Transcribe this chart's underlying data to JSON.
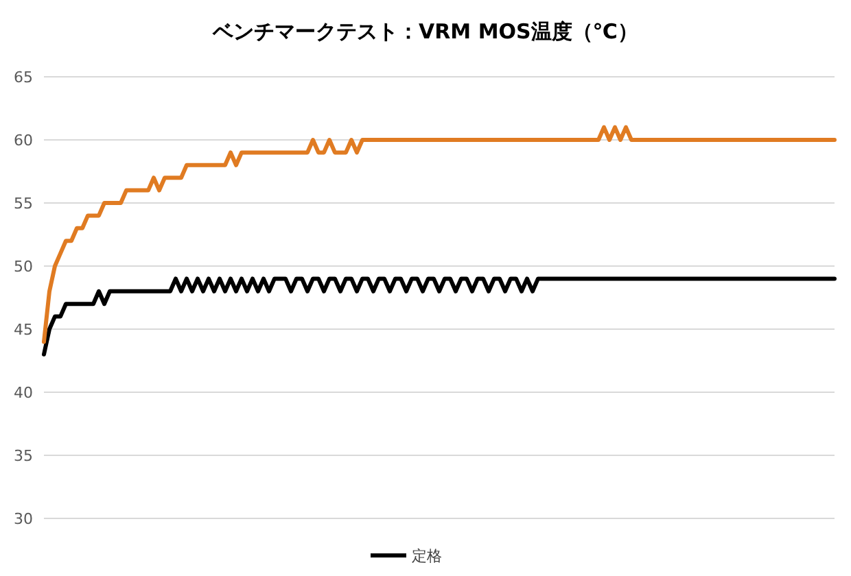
{
  "chart_data": {
    "type": "line",
    "title": "ベンチマークテスト：VRM MOS温度（℃）",
    "categories": [
      null,
      null,
      null,
      null,
      null,
      null,
      null,
      null,
      null,
      null,
      null,
      null,
      null,
      null,
      null,
      null,
      null,
      null,
      null,
      null,
      null,
      null,
      null,
      null,
      null,
      null,
      null,
      null,
      null,
      null,
      null,
      null,
      null,
      null,
      null,
      null,
      null,
      null,
      null,
      null,
      null,
      null,
      null,
      null,
      null,
      null,
      null,
      null,
      null,
      null,
      null,
      null,
      null,
      null,
      null,
      null,
      null,
      null,
      null,
      null,
      null,
      null,
      null,
      null,
      null,
      null,
      null,
      null,
      null,
      null,
      null,
      null,
      null,
      null,
      null,
      null,
      null,
      null,
      null,
      null,
      null,
      null,
      null,
      null,
      null,
      null,
      null,
      null,
      null,
      null,
      null,
      null,
      null,
      null,
      null,
      null,
      null,
      null,
      null,
      null,
      null,
      null,
      null,
      null,
      null,
      null,
      null,
      null,
      null,
      null,
      null,
      null,
      null,
      null,
      null,
      null,
      null,
      null,
      null,
      null,
      null,
      null,
      null,
      null,
      null,
      null,
      null,
      null,
      null,
      null,
      null,
      null,
      null,
      null,
      null,
      null,
      null,
      null,
      null,
      null,
      null,
      null,
      null,
      null,
      null
    ],
    "series": [
      {
        "name": "定格",
        "color": "#000000",
        "values": [
          43,
          45,
          46,
          46,
          47,
          47,
          47,
          47,
          47,
          47,
          48,
          47,
          48,
          48,
          48,
          48,
          48,
          48,
          48,
          48,
          48,
          48,
          48,
          48,
          49,
          48,
          49,
          48,
          49,
          48,
          49,
          48,
          49,
          48,
          49,
          48,
          49,
          48,
          49,
          48,
          49,
          48,
          49,
          49,
          49,
          48,
          49,
          49,
          48,
          49,
          49,
          48,
          49,
          49,
          48,
          49,
          49,
          48,
          49,
          49,
          48,
          49,
          49,
          48,
          49,
          49,
          48,
          49,
          49,
          48,
          49,
          49,
          48,
          49,
          49,
          48,
          49,
          49,
          48,
          49,
          49,
          48,
          49,
          49,
          48,
          49,
          49,
          48,
          49,
          48,
          49,
          49,
          49,
          49,
          49,
          49,
          49,
          49,
          49,
          49,
          49,
          49,
          49,
          49,
          49,
          49,
          49,
          49,
          49,
          49,
          49,
          49,
          49,
          49,
          49,
          49,
          49,
          49,
          49,
          49,
          49,
          49,
          49,
          49,
          49,
          49,
          49,
          49,
          49,
          49,
          49,
          49,
          49,
          49,
          49,
          49,
          49,
          49,
          49,
          49,
          49,
          49,
          49,
          49,
          49
        ]
      },
      {
        "color": "#e07b22",
        "values": [
          44,
          48,
          50,
          51,
          52,
          52,
          53,
          53,
          54,
          54,
          54,
          55,
          55,
          55,
          55,
          56,
          56,
          56,
          56,
          56,
          57,
          56,
          57,
          57,
          57,
          57,
          58,
          58,
          58,
          58,
          58,
          58,
          58,
          58,
          59,
          58,
          59,
          59,
          59,
          59,
          59,
          59,
          59,
          59,
          59,
          59,
          59,
          59,
          59,
          60,
          59,
          59,
          60,
          59,
          59,
          59,
          60,
          59,
          60,
          60,
          60,
          60,
          60,
          60,
          60,
          60,
          60,
          60,
          60,
          60,
          60,
          60,
          60,
          60,
          60,
          60,
          60,
          60,
          60,
          60,
          60,
          60,
          60,
          60,
          60,
          60,
          60,
          60,
          60,
          60,
          60,
          60,
          60,
          60,
          60,
          60,
          60,
          60,
          60,
          60,
          60,
          60,
          61,
          60,
          61,
          60,
          61,
          60,
          60,
          60,
          60,
          60,
          60,
          60,
          60,
          60,
          60,
          60,
          60,
          60,
          60,
          60,
          60,
          60,
          60,
          60,
          60,
          60,
          60,
          60,
          60,
          60,
          60,
          60,
          60,
          60,
          60,
          60,
          60,
          60,
          60,
          60,
          60,
          60,
          60
        ]
      }
    ],
    "ylim": [
      30,
      65
    ],
    "yticks": [
      30,
      35,
      40,
      45,
      50,
      55,
      60,
      65
    ],
    "grid": "y",
    "legend": "bottom",
    "marker": "none",
    "line_style": "solid"
  }
}
